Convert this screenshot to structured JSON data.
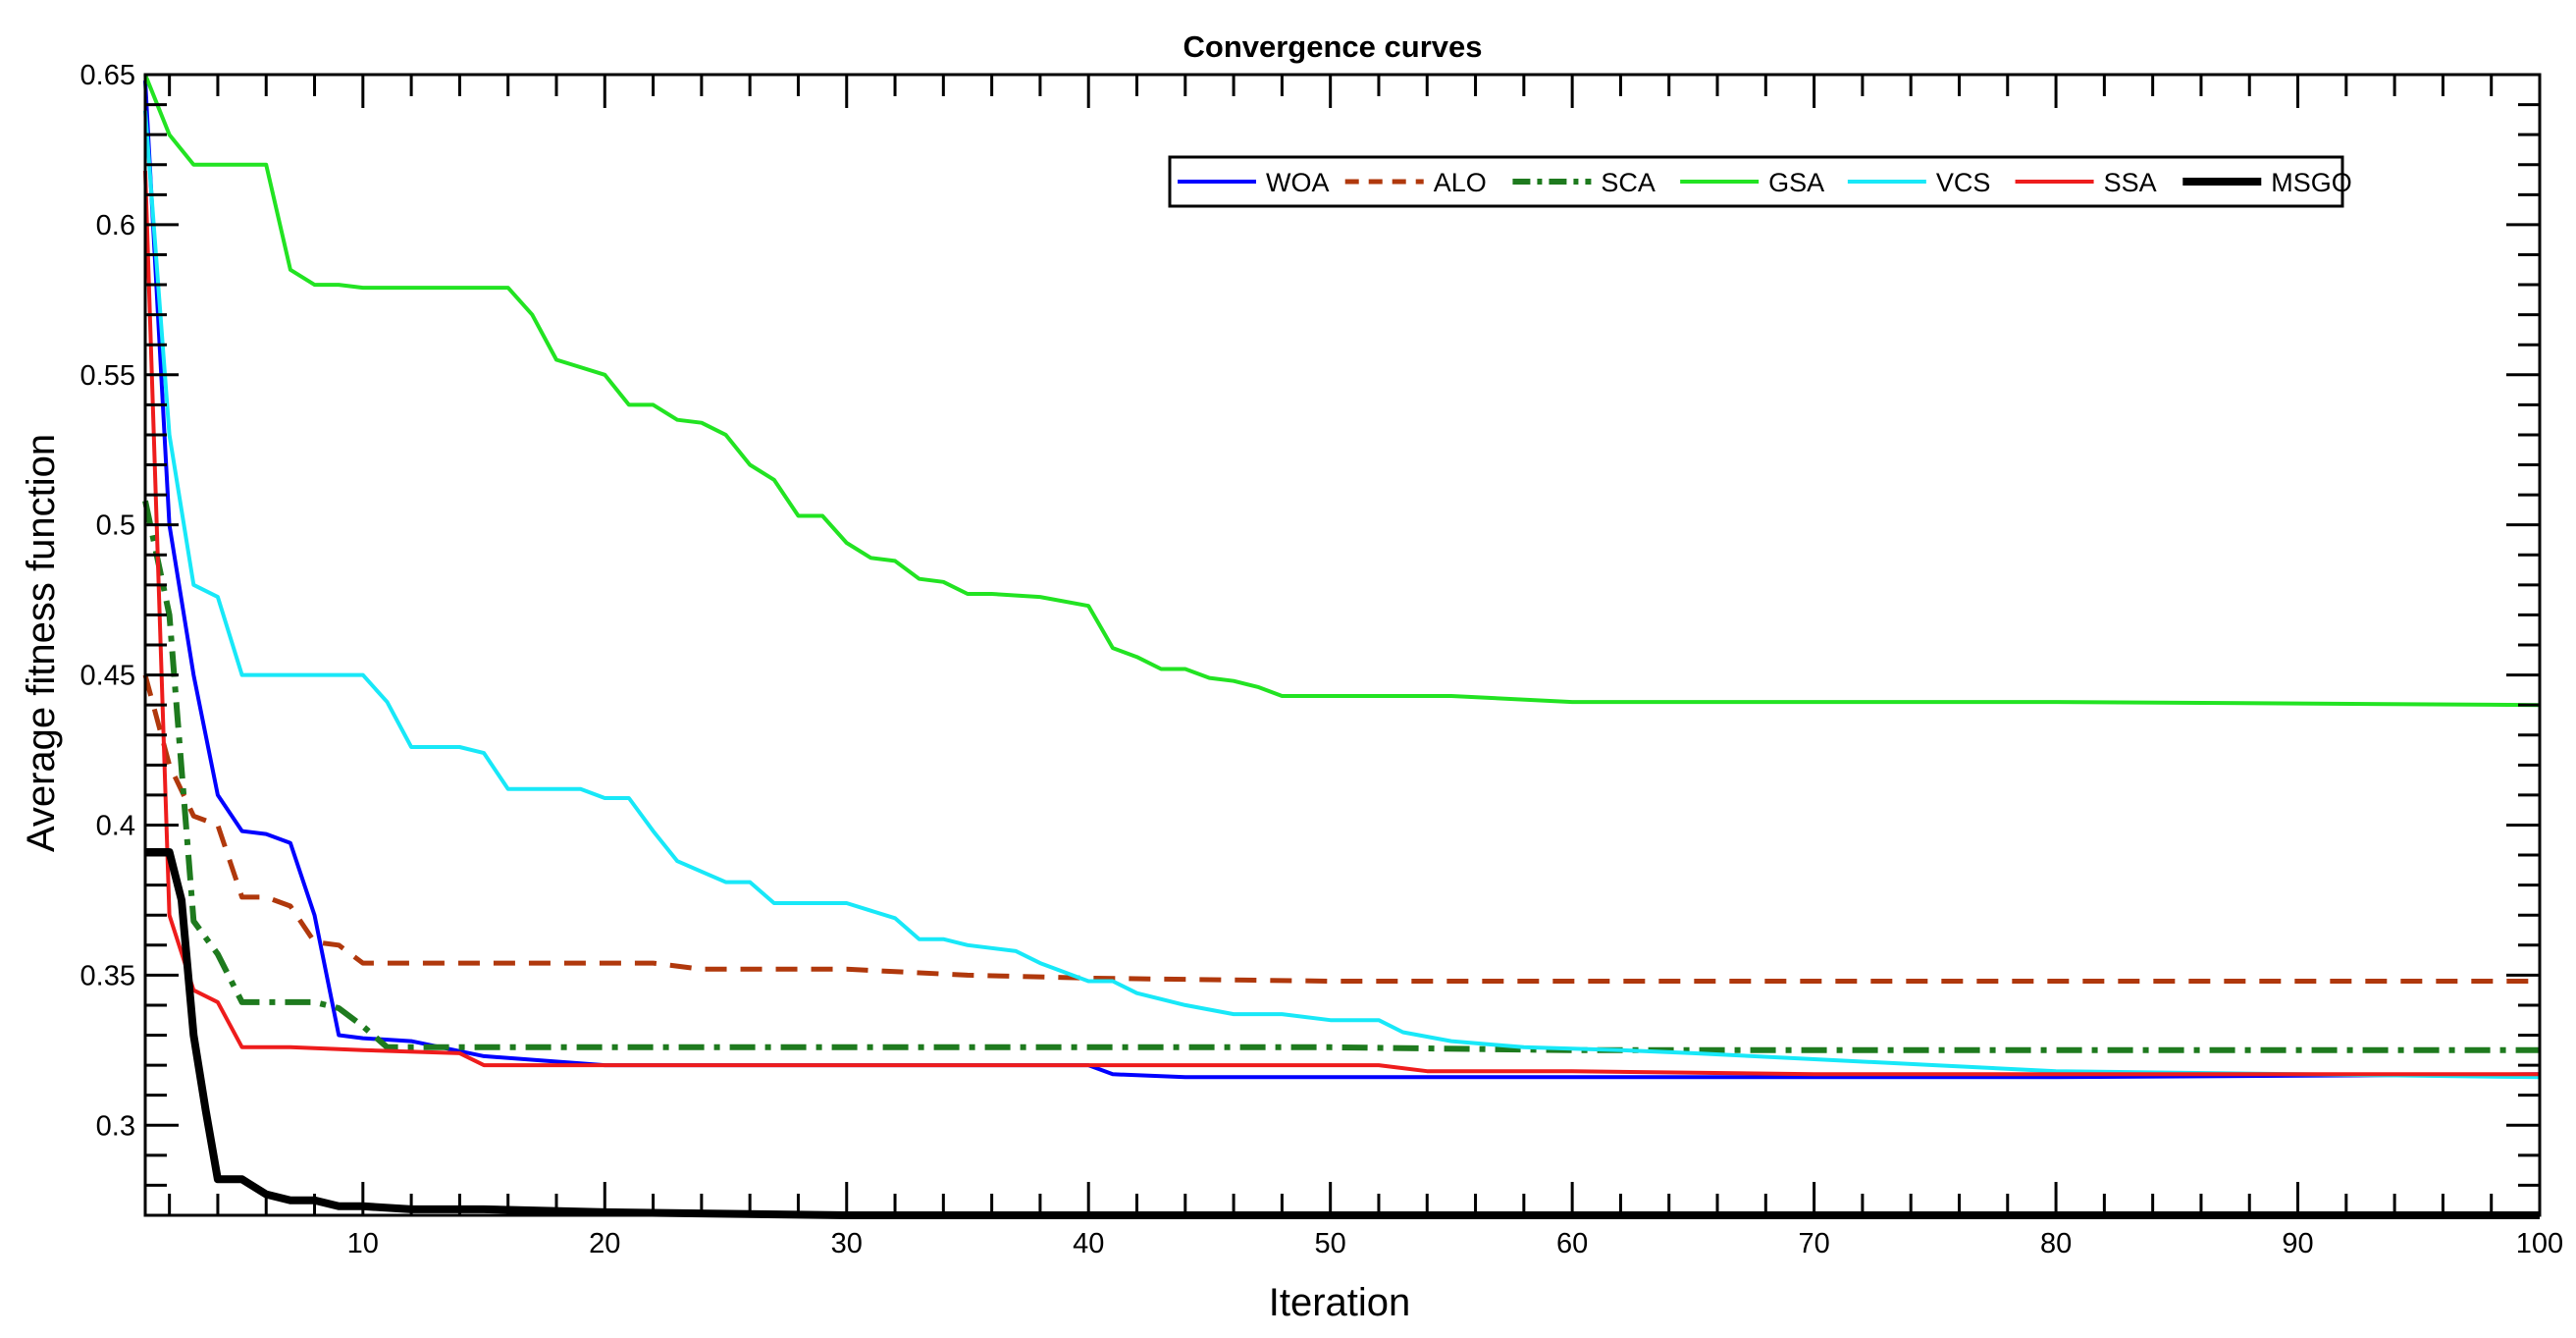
{
  "chart_data": {
    "type": "line",
    "title": "Convergence curves",
    "xlabel": "Iteration",
    "ylabel": "Average fitness function",
    "xlim": [
      1,
      100
    ],
    "ylim": [
      0.27,
      0.65
    ],
    "x_ticks": [
      10,
      20,
      30,
      40,
      50,
      60,
      70,
      80,
      90,
      100
    ],
    "y_ticks": [
      0.3,
      0.35,
      0.4,
      0.45,
      0.5,
      0.55,
      0.6,
      0.65
    ],
    "y_tick_labels": [
      "0.3",
      "0.35",
      "0.4",
      "0.45",
      "0.5",
      "0.55",
      "0.6",
      "0.65"
    ],
    "grid": false,
    "legend_position": "top-right",
    "series": [
      {
        "name": "WOA",
        "color": "#0000ff",
        "style": "solid",
        "width": 4,
        "points": [
          [
            1,
            0.648
          ],
          [
            2,
            0.5
          ],
          [
            3,
            0.45
          ],
          [
            4,
            0.41
          ],
          [
            5,
            0.398
          ],
          [
            6,
            0.397
          ],
          [
            7,
            0.394
          ],
          [
            8,
            0.37
          ],
          [
            9,
            0.33
          ],
          [
            10,
            0.329
          ],
          [
            12,
            0.328
          ],
          [
            15,
            0.323
          ],
          [
            20,
            0.32
          ],
          [
            30,
            0.32
          ],
          [
            40,
            0.32
          ],
          [
            41,
            0.317
          ],
          [
            44,
            0.316
          ],
          [
            60,
            0.316
          ],
          [
            80,
            0.316
          ],
          [
            100,
            0.317
          ]
        ]
      },
      {
        "name": "ALO",
        "color": "#b0380c",
        "style": "dashed",
        "width": 5,
        "points": [
          [
            1,
            0.45
          ],
          [
            2,
            0.42
          ],
          [
            3,
            0.403
          ],
          [
            4,
            0.4
          ],
          [
            5,
            0.376
          ],
          [
            6,
            0.376
          ],
          [
            7,
            0.373
          ],
          [
            8,
            0.361
          ],
          [
            9,
            0.36
          ],
          [
            10,
            0.354
          ],
          [
            15,
            0.354
          ],
          [
            22,
            0.354
          ],
          [
            24,
            0.352
          ],
          [
            30,
            0.352
          ],
          [
            35,
            0.35
          ],
          [
            40,
            0.349
          ],
          [
            50,
            0.348
          ],
          [
            60,
            0.348
          ],
          [
            80,
            0.348
          ],
          [
            100,
            0.348
          ]
        ]
      },
      {
        "name": "SCA",
        "color": "#1e7a1e",
        "style": "dashdot",
        "width": 6,
        "points": [
          [
            1,
            0.508
          ],
          [
            2,
            0.47
          ],
          [
            3,
            0.368
          ],
          [
            4,
            0.357
          ],
          [
            5,
            0.341
          ],
          [
            6,
            0.341
          ],
          [
            8,
            0.341
          ],
          [
            9,
            0.339
          ],
          [
            10,
            0.333
          ],
          [
            11,
            0.326
          ],
          [
            15,
            0.326
          ],
          [
            20,
            0.326
          ],
          [
            30,
            0.326
          ],
          [
            50,
            0.326
          ],
          [
            60,
            0.325
          ],
          [
            80,
            0.325
          ],
          [
            100,
            0.325
          ]
        ]
      },
      {
        "name": "GSA",
        "color": "#22e322",
        "style": "solid",
        "width": 4,
        "points": [
          [
            1,
            0.65
          ],
          [
            2,
            0.63
          ],
          [
            3,
            0.62
          ],
          [
            6,
            0.62
          ],
          [
            7,
            0.585
          ],
          [
            8,
            0.58
          ],
          [
            9,
            0.58
          ],
          [
            10,
            0.579
          ],
          [
            16,
            0.579
          ],
          [
            17,
            0.57
          ],
          [
            18,
            0.555
          ],
          [
            20,
            0.55
          ],
          [
            21,
            0.54
          ],
          [
            22,
            0.54
          ],
          [
            23,
            0.535
          ],
          [
            24,
            0.534
          ],
          [
            25,
            0.53
          ],
          [
            26,
            0.52
          ],
          [
            27,
            0.515
          ],
          [
            28,
            0.503
          ],
          [
            29,
            0.503
          ],
          [
            30,
            0.494
          ],
          [
            31,
            0.489
          ],
          [
            32,
            0.488
          ],
          [
            33,
            0.482
          ],
          [
            34,
            0.481
          ],
          [
            35,
            0.477
          ],
          [
            36,
            0.477
          ],
          [
            38,
            0.476
          ],
          [
            40,
            0.473
          ],
          [
            41,
            0.459
          ],
          [
            42,
            0.456
          ],
          [
            43,
            0.452
          ],
          [
            44,
            0.452
          ],
          [
            45,
            0.449
          ],
          [
            46,
            0.448
          ],
          [
            47,
            0.446
          ],
          [
            48,
            0.443
          ],
          [
            50,
            0.443
          ],
          [
            55,
            0.443
          ],
          [
            60,
            0.441
          ],
          [
            80,
            0.441
          ],
          [
            100,
            0.44
          ]
        ]
      },
      {
        "name": "VCS",
        "color": "#18e8f8",
        "style": "solid",
        "width": 4,
        "points": [
          [
            1,
            0.638
          ],
          [
            2,
            0.53
          ],
          [
            3,
            0.48
          ],
          [
            4,
            0.476
          ],
          [
            5,
            0.45
          ],
          [
            10,
            0.45
          ],
          [
            11,
            0.441
          ],
          [
            12,
            0.426
          ],
          [
            14,
            0.426
          ],
          [
            15,
            0.424
          ],
          [
            16,
            0.412
          ],
          [
            19,
            0.412
          ],
          [
            20,
            0.409
          ],
          [
            21,
            0.409
          ],
          [
            22,
            0.398
          ],
          [
            23,
            0.388
          ],
          [
            25,
            0.381
          ],
          [
            26,
            0.381
          ],
          [
            27,
            0.374
          ],
          [
            30,
            0.374
          ],
          [
            32,
            0.369
          ],
          [
            33,
            0.362
          ],
          [
            34,
            0.362
          ],
          [
            35,
            0.36
          ],
          [
            37,
            0.358
          ],
          [
            38,
            0.354
          ],
          [
            40,
            0.348
          ],
          [
            41,
            0.348
          ],
          [
            42,
            0.344
          ],
          [
            44,
            0.34
          ],
          [
            46,
            0.337
          ],
          [
            48,
            0.337
          ],
          [
            50,
            0.335
          ],
          [
            52,
            0.335
          ],
          [
            53,
            0.331
          ],
          [
            55,
            0.328
          ],
          [
            58,
            0.326
          ],
          [
            62,
            0.325
          ],
          [
            65,
            0.324
          ],
          [
            70,
            0.322
          ],
          [
            75,
            0.32
          ],
          [
            80,
            0.318
          ],
          [
            90,
            0.317
          ],
          [
            100,
            0.316
          ]
        ]
      },
      {
        "name": "SSA",
        "color": "#ee1c1c",
        "style": "solid",
        "width": 4,
        "points": [
          [
            1,
            0.618
          ],
          [
            2,
            0.37
          ],
          [
            3,
            0.345
          ],
          [
            4,
            0.341
          ],
          [
            5,
            0.326
          ],
          [
            7,
            0.326
          ],
          [
            10,
            0.325
          ],
          [
            14,
            0.324
          ],
          [
            15,
            0.32
          ],
          [
            20,
            0.32
          ],
          [
            40,
            0.32
          ],
          [
            45,
            0.32
          ],
          [
            52,
            0.32
          ],
          [
            54,
            0.318
          ],
          [
            60,
            0.318
          ],
          [
            70,
            0.317
          ],
          [
            100,
            0.317
          ]
        ]
      },
      {
        "name": "MSGO",
        "color": "#000000",
        "style": "solid",
        "width": 8,
        "points": [
          [
            1,
            0.391
          ],
          [
            2,
            0.391
          ],
          [
            2.5,
            0.375
          ],
          [
            3,
            0.33
          ],
          [
            3.5,
            0.305
          ],
          [
            4,
            0.282
          ],
          [
            5,
            0.282
          ],
          [
            6,
            0.277
          ],
          [
            7,
            0.275
          ],
          [
            8,
            0.275
          ],
          [
            9,
            0.273
          ],
          [
            10,
            0.273
          ],
          [
            12,
            0.272
          ],
          [
            15,
            0.272
          ],
          [
            20,
            0.271
          ],
          [
            30,
            0.27
          ],
          [
            50,
            0.27
          ],
          [
            100,
            0.27
          ]
        ]
      }
    ]
  }
}
